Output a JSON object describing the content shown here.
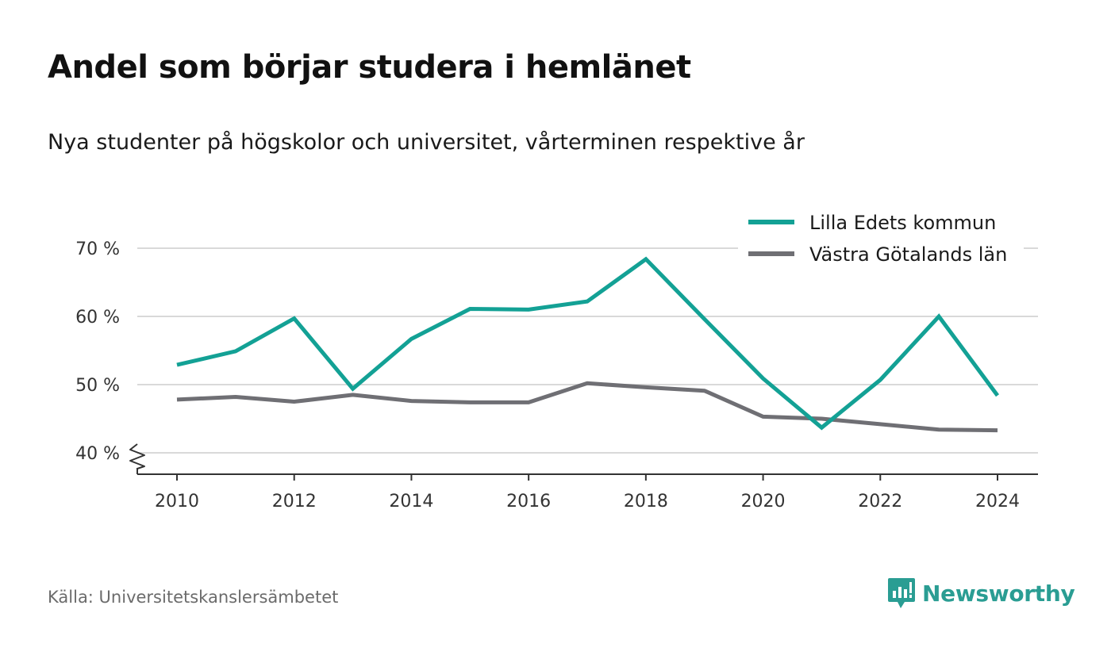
{
  "title": "Andel som börjar studera i hemlänet",
  "subtitle": "Nya studenter på högskolor och universitet, vårterminen respektive år",
  "source": "Källa: Universitetskanslersämbetet",
  "brand": {
    "name": "Newsworthy",
    "color": "#2a9d93",
    "icon": "newsworthy-logo-icon"
  },
  "chart_data": {
    "type": "line",
    "x": [
      2010,
      2011,
      2012,
      2013,
      2014,
      2015,
      2016,
      2017,
      2018,
      2019,
      2020,
      2021,
      2022,
      2023,
      2024
    ],
    "x_ticks": [
      2010,
      2012,
      2014,
      2016,
      2018,
      2020,
      2022,
      2024
    ],
    "y_ticks": [
      40,
      50,
      60,
      70
    ],
    "y_tick_labels": [
      "40 %",
      "50 %",
      "60 %",
      "70 %"
    ],
    "ylim": [
      37,
      70
    ],
    "y_axis_break": true,
    "grid": "horizontal",
    "legend_position": "top-right",
    "series": [
      {
        "name": "Lilla Edets kommun",
        "color": "#13a195",
        "values": [
          52.9,
          54.9,
          59.7,
          49.4,
          56.7,
          61.1,
          61.0,
          62.2,
          68.4,
          59.6,
          50.9,
          43.7,
          50.7,
          60.0,
          48.4
        ]
      },
      {
        "name": "Västra Götalands län",
        "color": "#6f6f74",
        "values": [
          47.8,
          48.2,
          47.5,
          48.5,
          47.6,
          47.4,
          47.4,
          50.2,
          49.6,
          49.1,
          45.3,
          45.0,
          44.2,
          43.4,
          43.3
        ]
      }
    ]
  }
}
